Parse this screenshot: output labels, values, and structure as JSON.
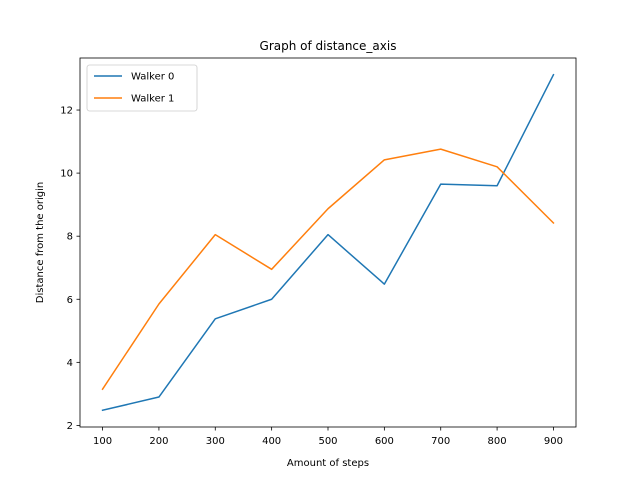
{
  "chart_data": {
    "type": "line",
    "title": "Graph of distance_axis",
    "xlabel": "Amount of steps",
    "ylabel": "Distance from the origin",
    "x": [
      100,
      200,
      300,
      400,
      500,
      600,
      700,
      800,
      900
    ],
    "xticks": [
      100,
      200,
      300,
      400,
      500,
      600,
      700,
      800,
      900
    ],
    "yticks": [
      2,
      4,
      6,
      8,
      10,
      12
    ],
    "xlim": [
      60,
      940
    ],
    "ylim": [
      1.95,
      13.65
    ],
    "grid": false,
    "legend_position": "top-left",
    "series": [
      {
        "name": "Walker 0",
        "color": "#1f77b4",
        "values": [
          2.48,
          2.9,
          5.38,
          6.0,
          8.05,
          6.48,
          9.65,
          9.6,
          13.12
        ]
      },
      {
        "name": "Walker 1",
        "color": "#ff7f0e",
        "values": [
          3.15,
          5.85,
          8.05,
          6.95,
          8.87,
          10.42,
          10.76,
          10.2,
          8.42
        ]
      }
    ]
  }
}
